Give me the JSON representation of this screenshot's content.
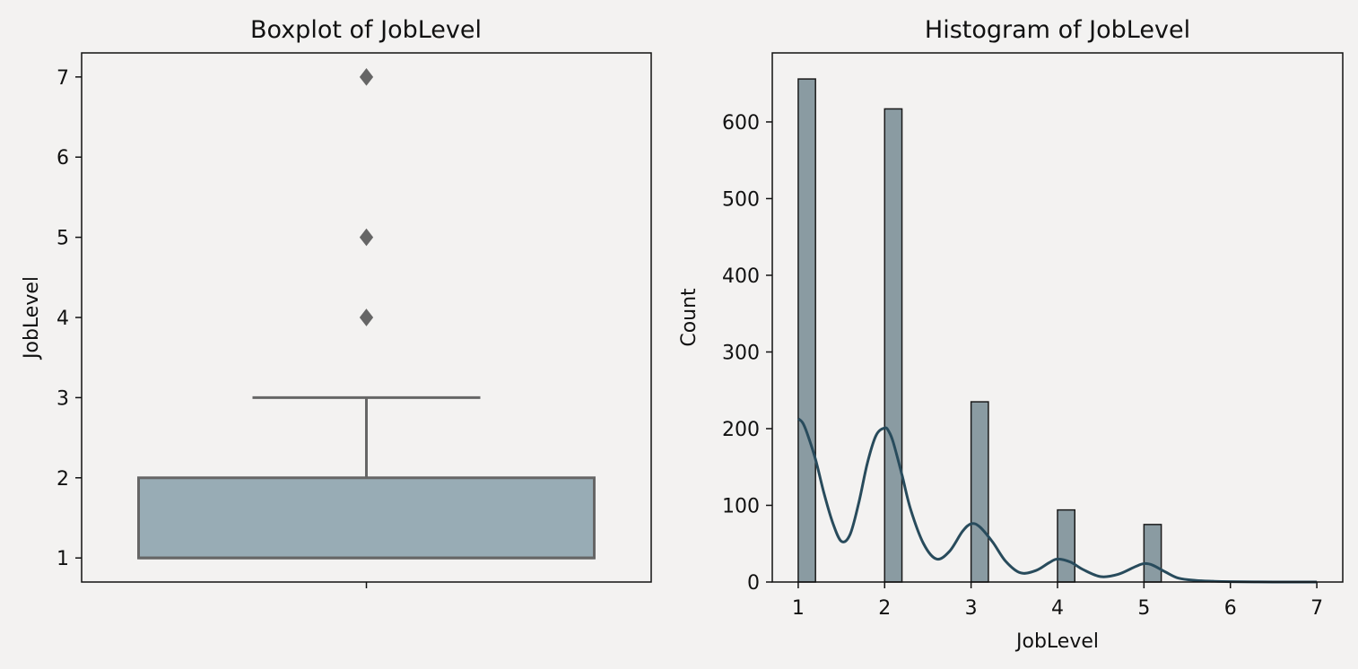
{
  "chart_data": [
    {
      "type": "box",
      "title": "Boxplot of JobLevel",
      "xlabel": "",
      "ylabel": "JobLevel",
      "ylim": [
        0.7,
        7.3
      ],
      "yticks": [
        1,
        2,
        3,
        4,
        5,
        6,
        7
      ],
      "box": {
        "q1": 1,
        "median": 1,
        "q3": 2,
        "whisker_low": 1,
        "whisker_high": 3
      },
      "outliers": [
        4,
        5,
        7
      ],
      "box_color": "#98acb5",
      "edge_color": "#666666"
    },
    {
      "type": "histogram",
      "title": "Histogram of JobLevel",
      "xlabel": "JobLevel",
      "ylabel": "Count",
      "xlim": [
        0.7,
        7.3
      ],
      "ylim": [
        0,
        690
      ],
      "xticks": [
        1,
        2,
        3,
        4,
        5,
        6,
        7
      ],
      "yticks": [
        0,
        100,
        200,
        300,
        400,
        500,
        600
      ],
      "bin_width": 0.2,
      "bins": [
        {
          "x": 1,
          "count": 656
        },
        {
          "x": 2,
          "count": 617
        },
        {
          "x": 3,
          "count": 235
        },
        {
          "x": 4,
          "count": 94
        },
        {
          "x": 5,
          "count": 75
        }
      ],
      "kde": {
        "x": [
          1.0,
          1.05,
          1.1,
          1.2,
          1.3,
          1.4,
          1.5,
          1.6,
          1.7,
          1.8,
          1.9,
          2.0,
          2.05,
          2.1,
          2.2,
          2.3,
          2.45,
          2.6,
          2.75,
          2.9,
          3.0,
          3.1,
          3.25,
          3.4,
          3.57,
          3.75,
          3.9,
          4.0,
          4.15,
          4.3,
          4.5,
          4.7,
          4.9,
          5.0,
          5.1,
          5.25,
          5.4,
          5.6,
          5.8,
          6.0,
          6.5,
          7.0
        ],
        "y": [
          213,
          208,
          195,
          160,
          115,
          77,
          53,
          62,
          103,
          155,
          191,
          201,
          196,
          182,
          140,
          95,
          50,
          30,
          40,
          66,
          76,
          72,
          52,
          27,
          12,
          15,
          25,
          30,
          26,
          16,
          7,
          10,
          20,
          24,
          22,
          13,
          5,
          2,
          1,
          0.5,
          0,
          0
        ]
      },
      "bar_color": "#8a9ba2",
      "line_color": "#284b5c"
    }
  ]
}
